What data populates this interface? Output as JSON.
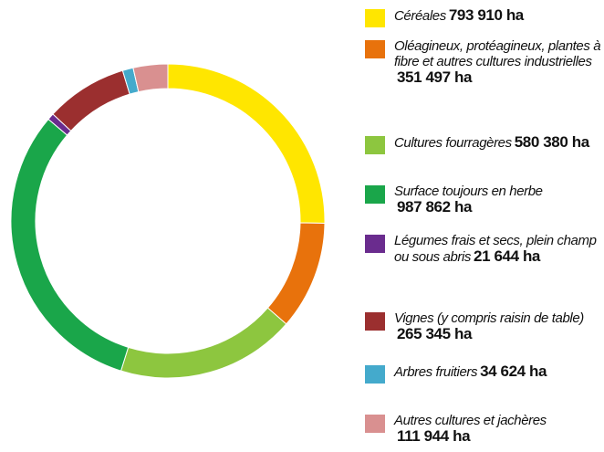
{
  "chart_data": {
    "type": "pie",
    "donut": true,
    "categories": [
      "Céréales",
      "Oléagineux, protéagineux, plantes à fibre et autres cultures industrielles",
      "Cultures fourragères",
      "Surface toujours en herbe",
      "Légumes frais et secs, plein champ ou sous abris",
      "Vignes (y compris raisin de table)",
      "Arbres fruitiers",
      "Autres cultures et jachères"
    ],
    "values": [
      793910,
      351497,
      580380,
      987862,
      21644,
      265345,
      34624,
      111944
    ],
    "value_labels": [
      "793 910 ha",
      "351 497 ha",
      "580 380 ha",
      "987 862 ha",
      "21 644 ha",
      "265 345 ha",
      "34 624 ha",
      "111 944 ha"
    ],
    "colors": [
      "#ffe600",
      "#e8720c",
      "#8dc63f",
      "#1aa64a",
      "#6a2c8e",
      "#9b2f2f",
      "#44aacc",
      "#d99090"
    ]
  }
}
